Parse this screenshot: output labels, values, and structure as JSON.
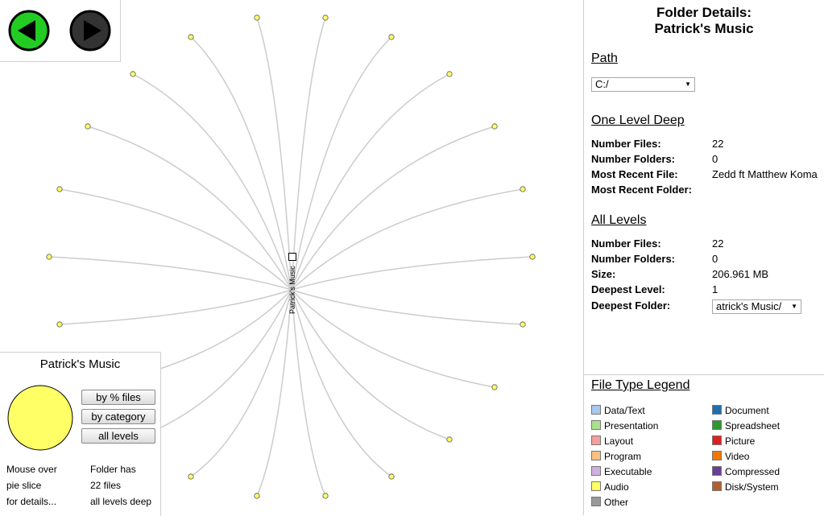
{
  "graph": {
    "center_label": "Patrick's Music",
    "node_count": 22
  },
  "summary": {
    "title": "Patrick's Music",
    "buttons": {
      "by_files": "by % files",
      "by_category": "by category",
      "all_levels": "all levels"
    },
    "hint": [
      "Mouse over",
      "pie slice",
      "for details..."
    ],
    "info": [
      "Folder has",
      "22 files",
      "all levels deep"
    ],
    "pie_color": "#ffff66"
  },
  "details": {
    "title_line1": "Folder Details:",
    "title_line2": "Patrick's Music",
    "path": {
      "heading": "Path",
      "value": "C:/"
    },
    "one_level": {
      "heading": "One Level Deep",
      "number_files_label": "Number Files:",
      "number_files": "22",
      "number_folders_label": "Number Folders:",
      "number_folders": "0",
      "recent_file_label": "Most Recent File:",
      "recent_file": "Zedd ft Matthew Koma",
      "recent_folder_label": "Most Recent Folder:",
      "recent_folder": ""
    },
    "all_levels": {
      "heading": "All Levels",
      "number_files_label": "Number Files:",
      "number_files": "22",
      "number_folders_label": "Number Folders:",
      "number_folders": "0",
      "size_label": "Size:",
      "size": "206.961 MB",
      "deepest_level_label": "Deepest Level:",
      "deepest_level": "1",
      "deepest_folder_label": "Deepest Folder:",
      "deepest_folder": "atrick's Music/"
    }
  },
  "legend": {
    "title": "File Type Legend",
    "left": [
      {
        "label": "Data/Text",
        "color": "#a8c8ec"
      },
      {
        "label": "Presentation",
        "color": "#a8e08c"
      },
      {
        "label": "Layout",
        "color": "#f4a0a0"
      },
      {
        "label": "Program",
        "color": "#f8c080"
      },
      {
        "label": "Executable",
        "color": "#d0b0e0"
      },
      {
        "label": "Audio",
        "color": "#ffff66"
      },
      {
        "label": "Other",
        "color": "#999999"
      }
    ],
    "right": [
      {
        "label": "Document",
        "color": "#1f6fb0"
      },
      {
        "label": "Spreadsheet",
        "color": "#2a9a2a"
      },
      {
        "label": "Picture",
        "color": "#dd2020"
      },
      {
        "label": "Video",
        "color": "#f07800"
      },
      {
        "label": "Compressed",
        "color": "#6a3d9a"
      },
      {
        "label": "Disk/System",
        "color": "#b06030"
      }
    ]
  },
  "colors": {
    "node_fill": "#ffff66",
    "edge": "#cccccc",
    "back_button": "#22cc22",
    "forward_button": "#333333"
  }
}
